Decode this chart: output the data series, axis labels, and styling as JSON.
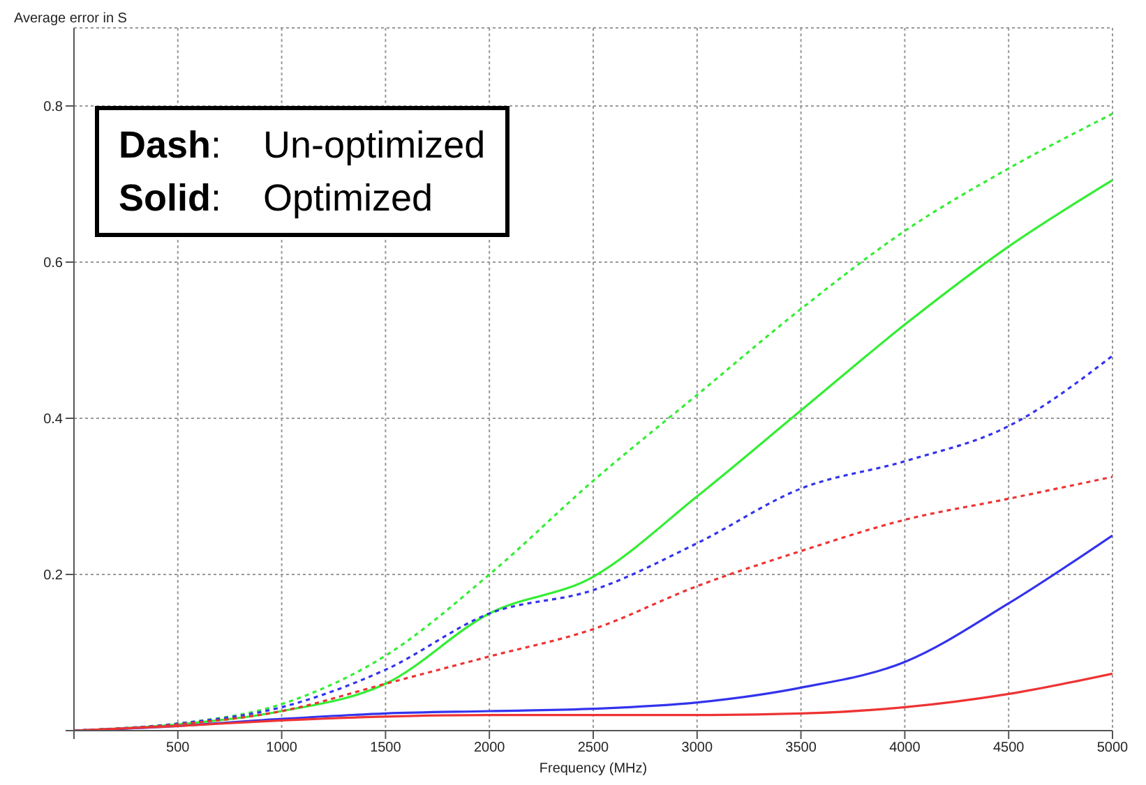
{
  "chart_data": {
    "type": "line",
    "xlabel": "Frequency (MHz)",
    "ylabel": "Average error in S",
    "x": [
      0,
      500,
      1000,
      1500,
      2000,
      2500,
      3000,
      3500,
      4000,
      4500,
      5000
    ],
    "series": [
      {
        "color": "#33ee33",
        "line_style": "dashed",
        "values": [
          0,
          0.009,
          0.034,
          0.096,
          0.2,
          0.32,
          0.43,
          0.54,
          0.64,
          0.72,
          0.79
        ]
      },
      {
        "color": "#33ee33",
        "line_style": "solid",
        "values": [
          0,
          0.008,
          0.025,
          0.06,
          0.15,
          0.197,
          0.3,
          0.41,
          0.52,
          0.62,
          0.705
        ]
      },
      {
        "color": "#3333ee",
        "line_style": "dashed",
        "values": [
          0,
          0.009,
          0.03,
          0.078,
          0.15,
          0.18,
          0.24,
          0.31,
          0.345,
          0.39,
          0.48
        ]
      },
      {
        "color": "#ee3333",
        "line_style": "dashed",
        "values": [
          0,
          0.008,
          0.025,
          0.06,
          0.095,
          0.13,
          0.185,
          0.23,
          0.27,
          0.297,
          0.325
        ]
      },
      {
        "color": "#3333ee",
        "line_style": "solid",
        "values": [
          0,
          0.006,
          0.015,
          0.022,
          0.025,
          0.028,
          0.036,
          0.055,
          0.088,
          0.163,
          0.25
        ]
      },
      {
        "color": "#ee3333",
        "line_style": "solid",
        "values": [
          0,
          0.006,
          0.013,
          0.018,
          0.02,
          0.02,
          0.02,
          0.022,
          0.03,
          0.047,
          0.073
        ]
      }
    ],
    "xlim": [
      0,
      5000
    ],
    "xticks": [
      {
        "value": 0,
        "label": null
      },
      500,
      1000,
      1500,
      2000,
      2500,
      3000,
      3500,
      4000,
      4500,
      5000
    ],
    "ylim": [
      0,
      0.9
    ],
    "yticks": [
      {
        "value": 0,
        "label": null
      },
      0.2,
      0.4,
      0.6,
      0.8
    ],
    "grid": true,
    "marker": "none",
    "annotations": [
      "Dash: Un-optimized",
      "Solid: Optimized"
    ]
  }
}
